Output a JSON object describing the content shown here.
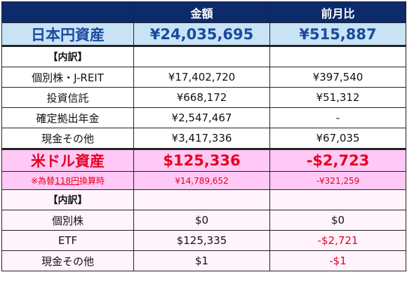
{
  "header": {
    "col_amount": "金額",
    "col_change": "前月比"
  },
  "jpy": {
    "title": "日本円資産",
    "total": "¥24,035,695",
    "total_change": "¥515,887",
    "breakdown_label": "【内訳】",
    "rows": [
      {
        "label": "個別株・J-REIT",
        "amount": "¥17,402,720",
        "change": "¥397,540"
      },
      {
        "label": "投資信託",
        "amount": "¥668,172",
        "change": "¥51,312"
      },
      {
        "label": "確定拠出年金",
        "amount": "¥2,547,467",
        "change": "-"
      },
      {
        "label": "現金その他",
        "amount": "¥3,417,336",
        "change": "¥67,035"
      }
    ]
  },
  "usd": {
    "title": "米ドル資産",
    "total": "$125,336",
    "total_change": "-$2,723",
    "fx_note_prefix": "※為替",
    "fx_rate": "118円",
    "fx_note_suffix": "換算時",
    "fx_amount": "¥14,789,652",
    "fx_change": "-¥321,259",
    "breakdown_label": "【内訳】",
    "rows": [
      {
        "label": "個別株",
        "amount": "$0",
        "change": "$0"
      },
      {
        "label": "ETF",
        "amount": "$125,335",
        "change": "-$2,721"
      },
      {
        "label": "現金その他",
        "amount": "$1",
        "change": "-$1"
      }
    ]
  },
  "colors": {
    "header_bg": "#0d2b6b",
    "jpy_total_bg": "#c7e3f5",
    "jpy_total_text": "#1b4a9e",
    "usd_bg": "#ffc8f5",
    "usd_text": "#e8001f",
    "usd_rows_bg": "#fff4fc"
  }
}
